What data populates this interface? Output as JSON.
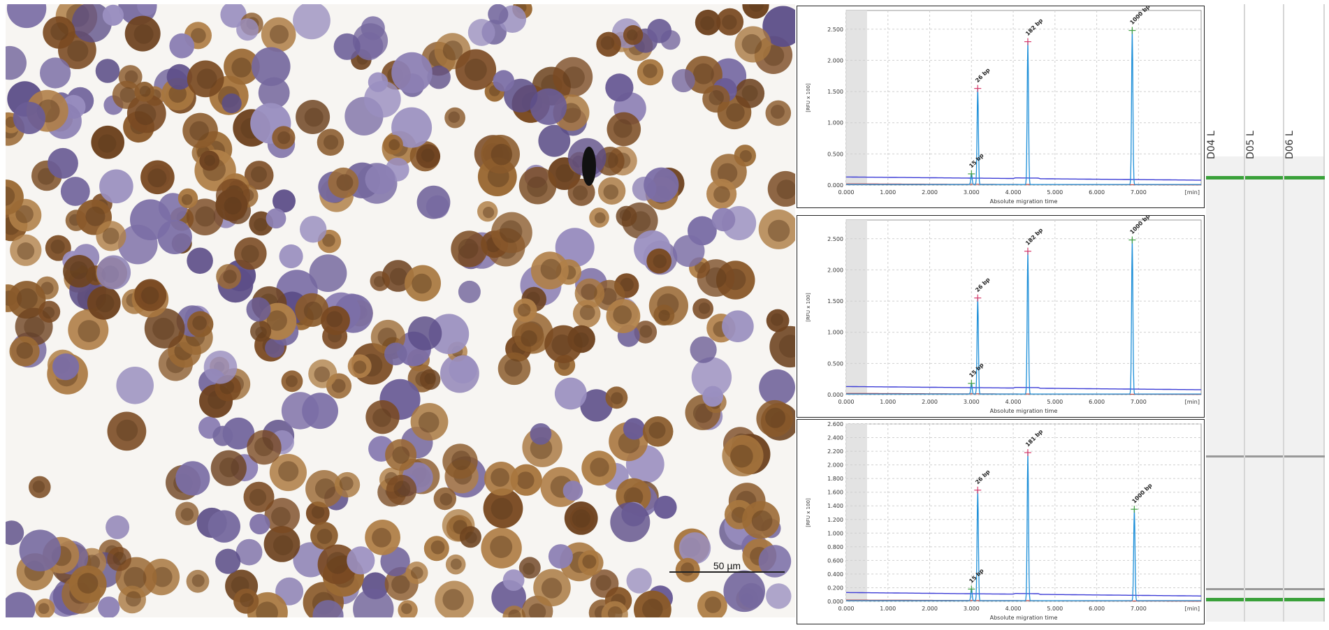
{
  "micrograph": {
    "scale_bar_label": "50 µm",
    "colors": {
      "dab": "#8a5a2b",
      "hematoxylin": "#7b6ea6",
      "background": "#f7f5f2"
    }
  },
  "electropherograms": [
    {
      "y_axis_label": "[RFU x 100]",
      "x_axis_label": "Absolute migration time",
      "x_unit": "[min]",
      "x_ticks": [
        "0.000",
        "1.000",
        "2.000",
        "3.000",
        "4.000",
        "5.000",
        "6.000",
        "7.000"
      ],
      "y_ticks": [
        "0.000",
        "0.500",
        "1.000",
        "1.500",
        "2.000",
        "2.500"
      ],
      "ylim": [
        0,
        2.8
      ],
      "peaks": [
        {
          "label": "15 bp",
          "x": 3.0,
          "y": 0.18
        },
        {
          "label": "26 bp",
          "x": 3.15,
          "y": 1.55
        },
        {
          "label": "182 bp",
          "x": 4.35,
          "y": 2.3
        },
        {
          "label": "1000 bp",
          "x": 6.85,
          "y": 2.48
        }
      ]
    },
    {
      "y_axis_label": "[RFU x 100]",
      "x_axis_label": "Absolute migration time",
      "x_unit": "[min]",
      "x_ticks": [
        "0.000",
        "1.000",
        "2.000",
        "3.000",
        "4.000",
        "5.000",
        "6.000",
        "7.000"
      ],
      "y_ticks": [
        "0.000",
        "0.500",
        "1.000",
        "1.500",
        "2.000",
        "2.500"
      ],
      "ylim": [
        0,
        2.8
      ],
      "peaks": [
        {
          "label": "15 bp",
          "x": 3.0,
          "y": 0.18
        },
        {
          "label": "26 bp",
          "x": 3.15,
          "y": 1.55
        },
        {
          "label": "182 bp",
          "x": 4.35,
          "y": 2.3
        },
        {
          "label": "1000 bp",
          "x": 6.85,
          "y": 2.48
        }
      ]
    },
    {
      "y_axis_label": "[RFU x 100]",
      "x_axis_label": "Absolute migration time",
      "x_unit": "[min]",
      "x_ticks": [
        "0.000",
        "1.000",
        "2.000",
        "3.000",
        "4.000",
        "5.000",
        "6.000",
        "7.000"
      ],
      "y_ticks": [
        "0.000",
        "0.200",
        "0.400",
        "0.600",
        "0.800",
        "1.000",
        "1.200",
        "1.400",
        "1.600",
        "1.800",
        "2.000",
        "2.200",
        "2.400",
        "2.600"
      ],
      "ylim": [
        0,
        2.6
      ],
      "peaks": [
        {
          "label": "15 bp",
          "x": 3.0,
          "y": 0.18
        },
        {
          "label": "26 bp",
          "x": 3.15,
          "y": 1.63
        },
        {
          "label": "181 bp",
          "x": 4.35,
          "y": 2.18
        },
        {
          "label": "1000 bp",
          "x": 6.9,
          "y": 1.35
        }
      ]
    }
  ],
  "gel": {
    "lanes": [
      "D04 L",
      "D05 L",
      "D06 L"
    ],
    "band_color": "#3aa13a",
    "marker_color": "#888888"
  }
}
